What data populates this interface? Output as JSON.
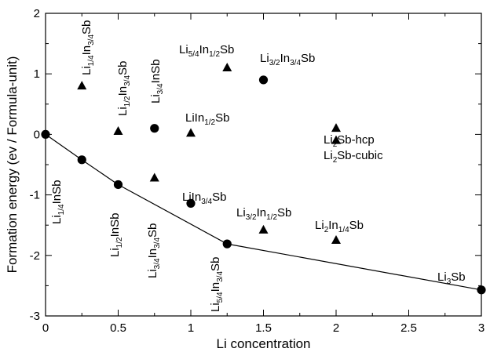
{
  "chart_data": {
    "type": "scatter",
    "title": "",
    "xlabel": "Li concentration",
    "ylabel": "Formation energy (ev / Formula-unit)",
    "xlim": [
      0,
      3
    ],
    "ylim": [
      -3,
      2
    ],
    "xticks": [
      0,
      0.5,
      1,
      1.5,
      2,
      2.5,
      3
    ],
    "xtick_labels": [
      "0",
      "0.5",
      "1",
      "1.5",
      "2",
      "2.5",
      "3"
    ],
    "yticks": [
      -3,
      -2,
      -1,
      0,
      1,
      2
    ],
    "ytick_labels": [
      "-3",
      "-2",
      "-1",
      "0",
      "1",
      "2"
    ],
    "grid": false,
    "series": [
      {
        "marker": "circle",
        "points": [
          {
            "x": 0,
            "y": 0,
            "label": ""
          },
          {
            "x": 0.25,
            "y": -0.42,
            "label": [
              "Li",
              "1/4",
              "InSb"
            ]
          },
          {
            "x": 0.5,
            "y": -0.83,
            "label": [
              "Li",
              "1/2",
              "InSb"
            ]
          },
          {
            "x": 0.75,
            "y": 0.1,
            "label": [
              "Li",
              "3/4",
              "InSb"
            ]
          },
          {
            "x": 1,
            "y": -1.14,
            "label": [
              "LiIn",
              "3/4",
              "Sb"
            ]
          },
          {
            "x": 1.25,
            "y": -1.81,
            "label": [
              "Li",
              "5/4",
              "In",
              "3/4",
              "Sb"
            ]
          },
          {
            "x": 1.5,
            "y": 0.9,
            "label": [
              "Li",
              "3/2",
              "In",
              "3/4",
              "Sb"
            ]
          },
          {
            "x": 3,
            "y": -2.57,
            "label": [
              "Li",
              "3",
              "Sb"
            ]
          }
        ]
      },
      {
        "marker": "triangle",
        "points": [
          {
            "x": 0.25,
            "y": 0.8,
            "label": [
              "Li",
              "1/4",
              "In",
              "3/4",
              "Sb"
            ]
          },
          {
            "x": 0.5,
            "y": 0.05,
            "label": [
              "Li",
              "1/2",
              "In",
              "3/4",
              "Sb"
            ]
          },
          {
            "x": 0.75,
            "y": -0.72,
            "label": [
              "Li",
              "3/4",
              "In",
              "3/4",
              "Sb"
            ]
          },
          {
            "x": 1,
            "y": 0.02,
            "label": [
              "LiIn",
              "1/2",
              "Sb"
            ]
          },
          {
            "x": 1.25,
            "y": 1.1,
            "label": [
              "Li",
              "5/4",
              "In",
              "1/2",
              "Sb"
            ]
          },
          {
            "x": 1.5,
            "y": -1.58,
            "label": [
              "Li",
              "3/2",
              "In",
              "1/2",
              "Sb"
            ]
          },
          {
            "x": 2,
            "y": 0.1,
            "label": [
              "Li",
              "2",
              "Sb-hcp"
            ]
          },
          {
            "x": 2,
            "y": -0.1,
            "label": [
              "Li",
              "2",
              "Sb-cubic"
            ]
          },
          {
            "x": 2,
            "y": -1.75,
            "label": [
              "Li",
              "2",
              "In",
              "1/4",
              "Sb"
            ]
          }
        ]
      }
    ],
    "convex_hull": {
      "x": [
        0,
        0.25,
        0.5,
        1.25,
        3
      ],
      "y": [
        0,
        -0.42,
        -0.83,
        -1.81,
        -2.57
      ]
    }
  }
}
